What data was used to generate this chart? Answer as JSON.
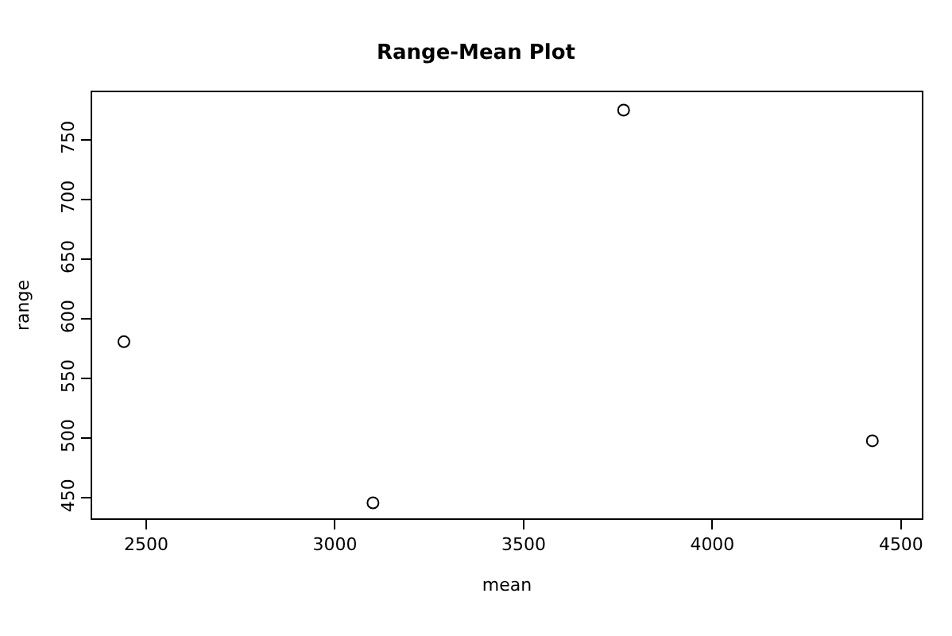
{
  "chart_data": {
    "type": "scatter",
    "title": "Range-Mean Plot",
    "xlabel": "mean",
    "ylabel": "range",
    "x": [
      2441,
      3101,
      3765,
      4424
    ],
    "values": [
      581,
      446,
      775,
      498
    ],
    "color": "#000000",
    "marker": "circle",
    "xlim": [
      2357,
      4555
    ],
    "xticks": [
      2500,
      3000,
      3500,
      4000,
      4500
    ],
    "ylim": [
      433,
      790
    ],
    "yticks": [
      450,
      500,
      550,
      600,
      650,
      700,
      750
    ]
  }
}
